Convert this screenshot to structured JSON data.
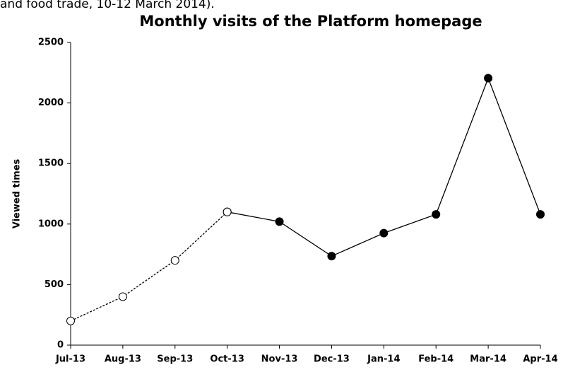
{
  "chart_data": {
    "type": "line",
    "context_text": "and food trade, 10-12 March 2014).",
    "title": "Monthly visits of the Platform homepage",
    "y_label": "Viewed times",
    "categories": [
      "Jul-13",
      "Aug-13",
      "Sep-13",
      "Oct-13",
      "Nov-13",
      "Dec-13",
      "Jan-14",
      "Feb-14",
      "Mar-14",
      "Apr-14"
    ],
    "series": [
      {
        "color": "#000000",
        "dashed": true,
        "marker": "open",
        "values": [
          200,
          400,
          700,
          1100,
          null,
          null,
          null,
          null,
          null,
          null
        ]
      },
      {
        "color": "#000000",
        "dashed": false,
        "marker": "filled",
        "values": [
          null,
          null,
          null,
          1100,
          1020,
          735,
          925,
          1080,
          2205,
          1080
        ]
      }
    ],
    "ylim": [
      0,
      2500
    ],
    "yticks": [
      0,
      500,
      1000,
      1500,
      2000,
      2500
    ],
    "grid": false
  }
}
